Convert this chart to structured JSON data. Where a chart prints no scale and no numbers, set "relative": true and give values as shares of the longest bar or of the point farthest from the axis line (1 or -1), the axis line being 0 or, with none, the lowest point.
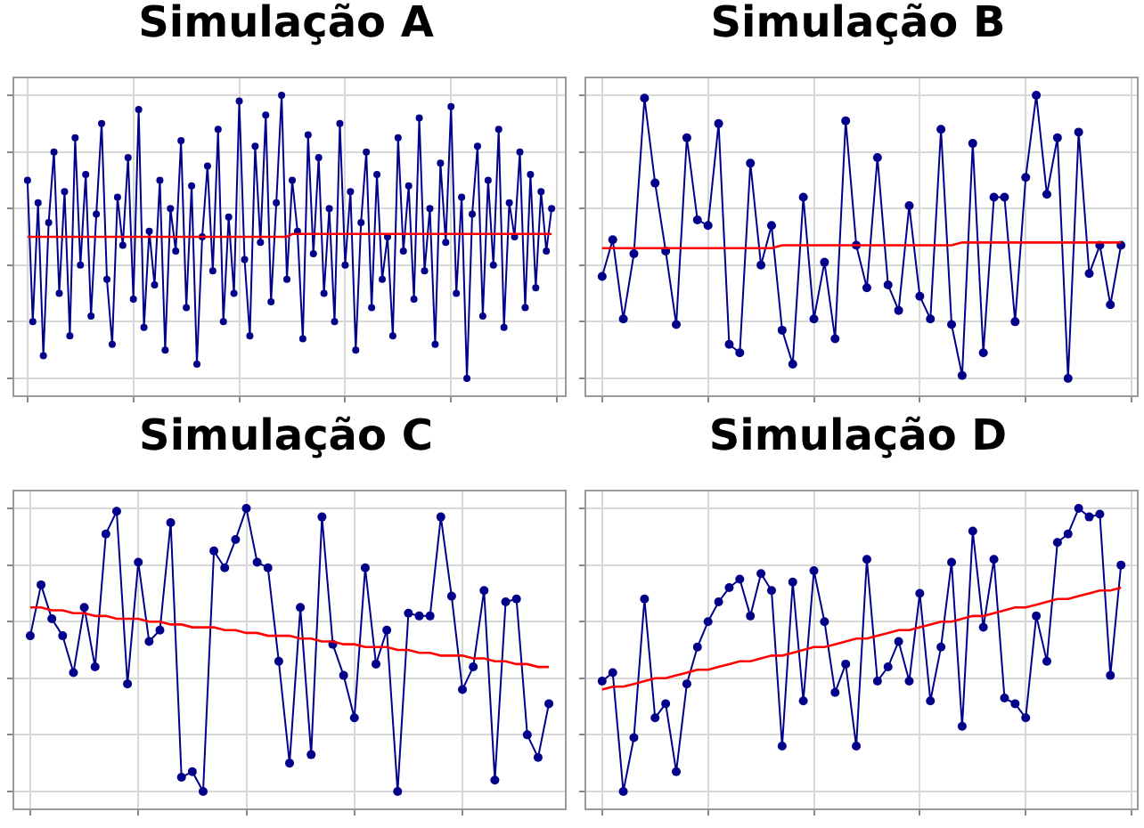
{
  "chart_data": [
    {
      "type": "line",
      "title": "Simulação A",
      "relative": true,
      "grid": true,
      "marker": "circle",
      "categories": [
        null,
        null,
        null,
        null,
        null,
        null,
        null,
        null,
        null,
        null,
        null,
        null,
        null,
        null,
        null,
        null,
        null,
        null,
        null,
        null,
        null,
        null,
        null,
        null,
        null,
        null,
        null,
        null,
        null,
        null,
        null,
        null,
        null,
        null,
        null,
        null,
        null,
        null,
        null,
        null,
        null,
        null,
        null,
        null,
        null,
        null,
        null,
        null,
        null,
        null,
        null,
        null,
        null,
        null,
        null,
        null,
        null,
        null,
        null,
        null,
        null,
        null,
        null,
        null,
        null,
        null,
        null,
        null,
        null,
        null,
        null,
        null,
        null,
        null,
        null,
        null,
        null,
        null,
        null,
        null,
        null,
        null,
        null,
        null,
        null,
        null,
        null,
        null,
        null,
        null,
        null,
        null,
        null,
        null,
        null,
        null,
        null,
        null,
        null,
        null
      ],
      "series": [
        {
          "color": "#00008b",
          "values": [
            0.7,
            0.2,
            0.62,
            0.08,
            0.55,
            0.8,
            0.3,
            0.66,
            0.15,
            0.85,
            0.4,
            0.72,
            0.22,
            0.58,
            0.9,
            0.35,
            0.12,
            0.64,
            0.47,
            0.78,
            0.28,
            0.95,
            0.18,
            0.52,
            0.33,
            0.7,
            0.1,
            0.6,
            0.45,
            0.84,
            0.25,
            0.68,
            0.05,
            0.5,
            0.75,
            0.38,
            0.88,
            0.2,
            0.57,
            0.3,
            0.98,
            0.42,
            0.15,
            0.82,
            0.48,
            0.93,
            0.27,
            0.62,
            1.0,
            0.35,
            0.7,
            0.52,
            0.14,
            0.86,
            0.44,
            0.78,
            0.3,
            0.6,
            0.2,
            0.9,
            0.4,
            0.66,
            0.1,
            0.55,
            0.8,
            0.25,
            0.72,
            0.35,
            0.5,
            0.15,
            0.85,
            0.45,
            0.68,
            0.28,
            0.92,
            0.38,
            0.6,
            0.12,
            0.76,
            0.48,
            0.96,
            0.3,
            0.64,
            0.0,
            0.58,
            0.82,
            0.22,
            0.7,
            0.4,
            0.88,
            0.18,
            0.62,
            0.5,
            0.8,
            0.25,
            0.72,
            0.32,
            0.66,
            0.45,
            0.6
          ]
        },
        {
          "type": "line",
          "color": "#ff0000",
          "marker": "none",
          "values": [
            0.5,
            0.5,
            0.5,
            0.5,
            0.5,
            0.5,
            0.5,
            0.5,
            0.5,
            0.5,
            0.5,
            0.5,
            0.5,
            0.5,
            0.5,
            0.5,
            0.5,
            0.5,
            0.5,
            0.5,
            0.5,
            0.5,
            0.5,
            0.5,
            0.5,
            0.5,
            0.5,
            0.5,
            0.5,
            0.5,
            0.5,
            0.5,
            0.5,
            0.5,
            0.5,
            0.5,
            0.5,
            0.5,
            0.5,
            0.5,
            0.5,
            0.5,
            0.5,
            0.5,
            0.5,
            0.5,
            0.5,
            0.5,
            0.5,
            0.5,
            0.51,
            0.51,
            0.51,
            0.51,
            0.51,
            0.51,
            0.51,
            0.51,
            0.51,
            0.51,
            0.51,
            0.51,
            0.51,
            0.51,
            0.51,
            0.51,
            0.51,
            0.51,
            0.51,
            0.51,
            0.51,
            0.51,
            0.51,
            0.51,
            0.51,
            0.51,
            0.51,
            0.51,
            0.51,
            0.51,
            0.51,
            0.51,
            0.51,
            0.51,
            0.51,
            0.51,
            0.51,
            0.51,
            0.51,
            0.51,
            0.51,
            0.51,
            0.51,
            0.51,
            0.51,
            0.51,
            0.51,
            0.51,
            0.51,
            0.51
          ]
        }
      ]
    },
    {
      "type": "line",
      "title": "Simulação B",
      "relative": true,
      "grid": true,
      "marker": "circle",
      "categories": [
        null,
        null,
        null,
        null,
        null,
        null,
        null,
        null,
        null,
        null,
        null,
        null,
        null,
        null,
        null,
        null,
        null,
        null,
        null,
        null,
        null,
        null,
        null,
        null,
        null,
        null,
        null,
        null,
        null,
        null,
        null,
        null,
        null,
        null,
        null,
        null,
        null,
        null,
        null,
        null,
        null,
        null,
        null,
        null,
        null,
        null,
        null,
        null,
        null,
        null
      ],
      "series": [
        {
          "color": "#00008b",
          "values": [
            0.36,
            0.49,
            0.21,
            0.44,
            0.99,
            0.69,
            0.45,
            0.19,
            0.85,
            0.56,
            0.54,
            0.9,
            0.12,
            0.09,
            0.76,
            0.4,
            0.54,
            0.17,
            0.05,
            0.64,
            0.21,
            0.41,
            0.14,
            0.91,
            0.47,
            0.32,
            0.78,
            0.33,
            0.24,
            0.61,
            0.29,
            0.21,
            0.88,
            0.19,
            0.01,
            0.83,
            0.09,
            0.64,
            0.64,
            0.2,
            0.71,
            1.0,
            0.65,
            0.85,
            0.0,
            0.87,
            0.37,
            0.47,
            0.26,
            0.47
          ]
        },
        {
          "type": "line",
          "color": "#ff0000",
          "marker": "none",
          "values": [
            0.46,
            0.46,
            0.46,
            0.46,
            0.46,
            0.46,
            0.46,
            0.46,
            0.46,
            0.46,
            0.46,
            0.46,
            0.46,
            0.46,
            0.46,
            0.46,
            0.46,
            0.47,
            0.47,
            0.47,
            0.47,
            0.47,
            0.47,
            0.47,
            0.47,
            0.47,
            0.47,
            0.47,
            0.47,
            0.47,
            0.47,
            0.47,
            0.47,
            0.47,
            0.48,
            0.48,
            0.48,
            0.48,
            0.48,
            0.48,
            0.48,
            0.48,
            0.48,
            0.48,
            0.48,
            0.48,
            0.48,
            0.48,
            0.48,
            0.48
          ]
        }
      ]
    },
    {
      "type": "line",
      "title": "Simulação C",
      "relative": true,
      "grid": true,
      "marker": "circle",
      "categories": [
        null,
        null,
        null,
        null,
        null,
        null,
        null,
        null,
        null,
        null,
        null,
        null,
        null,
        null,
        null,
        null,
        null,
        null,
        null,
        null,
        null,
        null,
        null,
        null,
        null,
        null,
        null,
        null,
        null,
        null,
        null,
        null,
        null,
        null,
        null,
        null,
        null,
        null,
        null,
        null,
        null,
        null,
        null,
        null,
        null,
        null,
        null,
        null,
        null
      ],
      "series": [
        {
          "color": "#00008b",
          "values": [
            0.55,
            0.73,
            0.61,
            0.55,
            0.42,
            0.65,
            0.44,
            0.91,
            0.99,
            0.38,
            0.81,
            0.53,
            0.57,
            0.95,
            0.05,
            0.07,
            0.0,
            0.85,
            0.79,
            0.89,
            1.0,
            0.81,
            0.79,
            0.46,
            0.1,
            0.65,
            0.13,
            0.97,
            0.52,
            0.41,
            0.26,
            0.79,
            0.45,
            0.57,
            0.0,
            0.63,
            0.62,
            0.62,
            0.97,
            0.69,
            0.36,
            0.44,
            0.71,
            0.04,
            0.67,
            0.68,
            0.2,
            0.12,
            0.31
          ]
        },
        {
          "type": "line",
          "color": "#ff0000",
          "marker": "none",
          "values": [
            0.65,
            0.65,
            0.64,
            0.64,
            0.63,
            0.63,
            0.62,
            0.62,
            0.61,
            0.61,
            0.61,
            0.6,
            0.6,
            0.59,
            0.59,
            0.58,
            0.58,
            0.58,
            0.57,
            0.57,
            0.56,
            0.56,
            0.55,
            0.55,
            0.55,
            0.54,
            0.54,
            0.53,
            0.53,
            0.52,
            0.52,
            0.51,
            0.51,
            0.51,
            0.5,
            0.5,
            0.49,
            0.49,
            0.48,
            0.48,
            0.48,
            0.47,
            0.47,
            0.46,
            0.46,
            0.45,
            0.45,
            0.44,
            0.44
          ]
        }
      ]
    },
    {
      "type": "line",
      "title": "Simulação D",
      "relative": true,
      "grid": true,
      "marker": "circle",
      "categories": [
        null,
        null,
        null,
        null,
        null,
        null,
        null,
        null,
        null,
        null,
        null,
        null,
        null,
        null,
        null,
        null,
        null,
        null,
        null,
        null,
        null,
        null,
        null,
        null,
        null,
        null,
        null,
        null,
        null,
        null,
        null,
        null,
        null,
        null,
        null,
        null,
        null,
        null,
        null,
        null,
        null,
        null,
        null,
        null,
        null,
        null,
        null,
        null,
        null,
        null
      ],
      "series": [
        {
          "color": "#00008b",
          "values": [
            0.39,
            0.42,
            0.0,
            0.19,
            0.68,
            0.26,
            0.31,
            0.07,
            0.38,
            0.51,
            0.6,
            0.67,
            0.72,
            0.75,
            0.62,
            0.77,
            0.71,
            0.16,
            0.74,
            0.32,
            0.78,
            0.6,
            0.35,
            0.45,
            0.16,
            0.82,
            0.39,
            0.44,
            0.53,
            0.39,
            0.7,
            0.32,
            0.51,
            0.81,
            0.23,
            0.92,
            0.58,
            0.82,
            0.33,
            0.31,
            0.26,
            0.62,
            0.46,
            0.88,
            0.91,
            1.0,
            0.97,
            0.98,
            0.41,
            0.8
          ]
        },
        {
          "type": "line",
          "color": "#ff0000",
          "marker": "none",
          "values": [
            0.36,
            0.37,
            0.37,
            0.38,
            0.39,
            0.4,
            0.4,
            0.41,
            0.42,
            0.43,
            0.43,
            0.44,
            0.45,
            0.46,
            0.46,
            0.47,
            0.48,
            0.48,
            0.49,
            0.5,
            0.51,
            0.51,
            0.52,
            0.53,
            0.54,
            0.54,
            0.55,
            0.56,
            0.57,
            0.57,
            0.58,
            0.59,
            0.6,
            0.6,
            0.61,
            0.62,
            0.62,
            0.63,
            0.64,
            0.65,
            0.65,
            0.66,
            0.67,
            0.68,
            0.68,
            0.69,
            0.7,
            0.71,
            0.71,
            0.72
          ]
        }
      ]
    }
  ]
}
